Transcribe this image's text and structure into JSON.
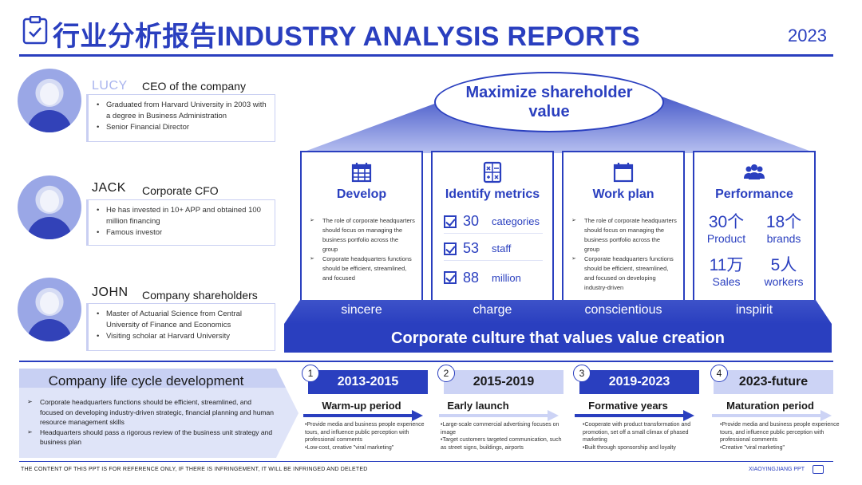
{
  "header": {
    "title": "行业分析报告INDUSTRY ANALYSIS REPORTS",
    "year": "2023"
  },
  "people": [
    {
      "name": "LUCY",
      "role": "CEO of the company",
      "bullets": [
        "Graduated from Harvard University in 2003 with a degree in Business Administration",
        "Senior Financial Director"
      ]
    },
    {
      "name": "JACK",
      "role": "Corporate CFO",
      "bullets": [
        "He has invested in 10+ APP and obtained 100 million financing",
        "Famous investor"
      ]
    },
    {
      "name": "JOHN",
      "role": "Company shareholders",
      "bullets": [
        "Master of Actuarial Science from Central University of Finance and Economics",
        "Visiting scholar at Harvard University"
      ]
    }
  ],
  "goal": "Maximize shareholder value",
  "pillars": {
    "develop": {
      "title": "Develop",
      "icon": "calendar-grid-icon",
      "bullets": [
        "The role of corporate headquarters should focus on managing the business portfolio across the group",
        "Corporate headquarters functions should be efficient, streamlined, and focused"
      ]
    },
    "metrics": {
      "title": "Identify metrics",
      "icon": "calculator-icon",
      "items": [
        {
          "value": "30",
          "unit": "categories"
        },
        {
          "value": "53",
          "unit": "staff"
        },
        {
          "value": "88",
          "unit": "million"
        }
      ]
    },
    "workplan": {
      "title": "Work plan",
      "icon": "calendar-icon",
      "bullets": [
        "The role of corporate headquarters should focus on managing the business portfolio across the group",
        "Corporate headquarters functions should be efficient, streamlined, and focused on developing industry-driven"
      ]
    },
    "performance": {
      "title": "Performance",
      "icon": "team-icon",
      "cells": [
        {
          "value": "30个",
          "label": "Product"
        },
        {
          "value": "18个",
          "label": "brands"
        },
        {
          "value": "11万",
          "label": "Sales"
        },
        {
          "value": "5人",
          "label": "workers"
        }
      ]
    }
  },
  "culture": {
    "words": [
      "sincere",
      "charge",
      "conscientious",
      "inspirit"
    ],
    "statement": "Corporate culture that values value creation"
  },
  "lifecycle": {
    "title": "Company life cycle development",
    "bullets": [
      "Corporate headquarters functions should be efficient, streamlined, and focused on developing industry-driven strategic, financial planning and human resource management skills",
      "Headquarters should pass a rigorous review of the business unit strategy and business plan"
    ]
  },
  "phases": [
    {
      "num": "1",
      "years": "2013-2015",
      "name": "Warm-up period",
      "notes": "•Provide media and business people experience tours, and influence public perception with professional comments\n•Low-cost, creative \"viral marketing\""
    },
    {
      "num": "2",
      "years": "2015-2019",
      "name": "Early launch",
      "notes": "•Large-scale commercial advertising focuses on image\n•Target customers targeted communication, such as street signs, buildings, airports"
    },
    {
      "num": "3",
      "years": "2019-2023",
      "name": "Formative years",
      "notes": "•Cooperate with product transformation and promotion, set off a small climax of phased marketing\n•Built through sponsorship and loyalty"
    },
    {
      "num": "4",
      "years": "2023-future",
      "name": "Maturation period",
      "notes": "•Provide media and business people experience tours, and influence public perception with professional comments\n•Creative \"viral marketing\""
    }
  ],
  "footer": {
    "disclaimer": "THE CONTENT OF THIS PPT IS FOR REFERENCE ONLY, IF THERE IS INFRINGEMENT, IT WILL BE INFRINGED AND DELETED",
    "brand": "XIAOYINGJIANG PPT"
  },
  "colors": {
    "primary": "#2a3fbf",
    "light": "#ccd3f5",
    "border": "#c9cff2"
  }
}
